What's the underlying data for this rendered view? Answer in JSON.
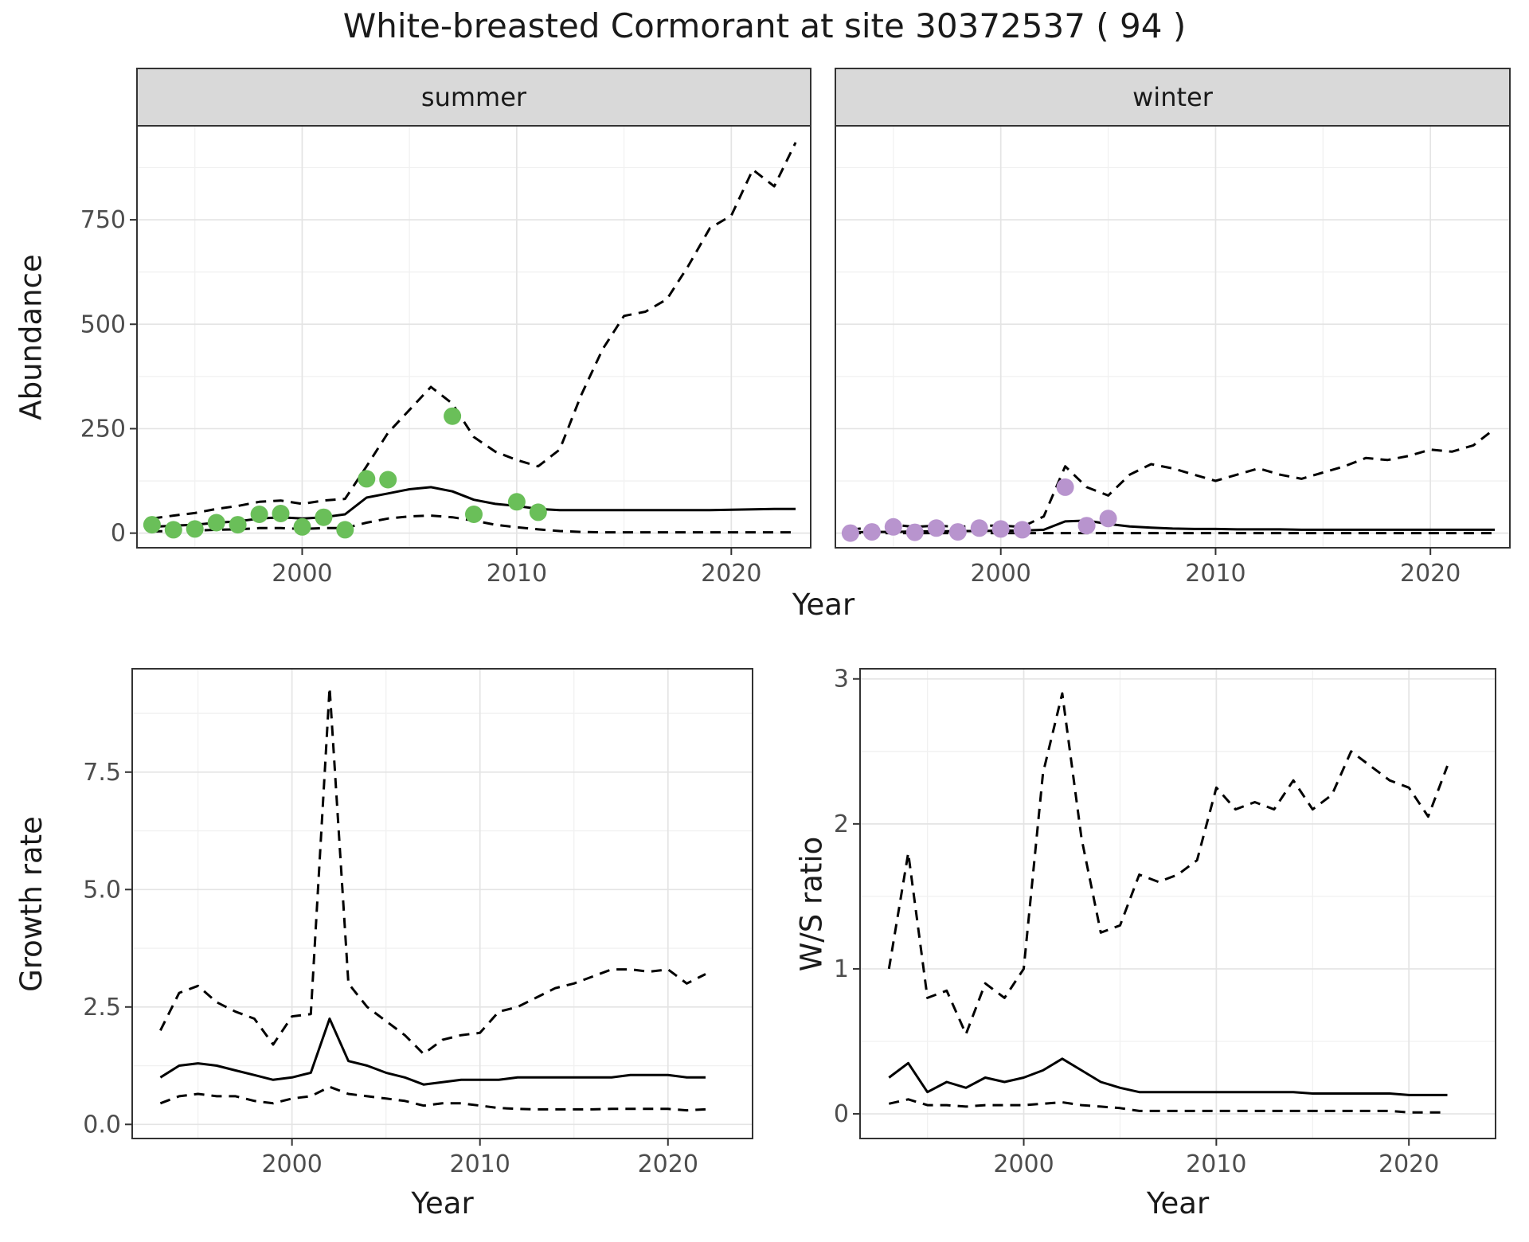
{
  "title": "White-breasted Cormorant at site 30372537 ( 94 )",
  "facets": {
    "summer_label": "summer",
    "winter_label": "winter"
  },
  "axis_titles": {
    "abundance": "Abundance",
    "year_top": "Year",
    "growth": "Growth rate",
    "year_growth": "Year",
    "ratio": "W/S ratio",
    "year_ratio": "Year"
  },
  "colors": {
    "summer_points": "#6abf59",
    "winter_points": "#b894ce",
    "line": "#000000",
    "strip_bg": "#d9d9d9",
    "panel_border": "#333333",
    "grid_major": "#e4e4e4",
    "grid_minor": "#f1f1f1",
    "axis_text": "#4d4d4d",
    "tick_mark": "#333333"
  },
  "chart_data": [
    {
      "id": "abundance_summer",
      "type": "line",
      "facet": "summer",
      "xlabel": "Year",
      "ylabel": "Abundance",
      "x_ticks": [
        "2000",
        "2010",
        "2020"
      ],
      "x_tick_values": [
        2000,
        2010,
        2020
      ],
      "y_ticks": [
        "0",
        "250",
        "500",
        "750"
      ],
      "y_tick_values": [
        0,
        250,
        500,
        750
      ],
      "xlim": [
        1992.3,
        2023.7
      ],
      "ylim": [
        -35,
        975
      ],
      "x": [
        1993,
        1994,
        1995,
        1996,
        1997,
        1998,
        1999,
        2000,
        2001,
        2002,
        2003,
        2004,
        2005,
        2006,
        2007,
        2008,
        2009,
        2010,
        2011,
        2012,
        2013,
        2014,
        2015,
        2016,
        2017,
        2018,
        2019,
        2020,
        2021,
        2022,
        2023
      ],
      "series": [
        {
          "name": "median",
          "style": "solid",
          "values": [
            15,
            18,
            20,
            25,
            28,
            35,
            38,
            35,
            38,
            45,
            85,
            95,
            105,
            110,
            100,
            80,
            70,
            65,
            58,
            55,
            55,
            55,
            55,
            55,
            55,
            55,
            55,
            56,
            57,
            58,
            58
          ]
        },
        {
          "name": "upper_ci",
          "style": "dashed",
          "values": [
            35,
            42,
            48,
            58,
            65,
            75,
            78,
            70,
            78,
            82,
            160,
            240,
            295,
            350,
            310,
            230,
            195,
            175,
            160,
            200,
            330,
            440,
            520,
            530,
            560,
            640,
            730,
            760,
            870,
            830,
            935
          ]
        },
        {
          "name": "lower_ci",
          "style": "dashed",
          "values": [
            4,
            5,
            6,
            8,
            9,
            12,
            12,
            10,
            12,
            12,
            25,
            35,
            40,
            42,
            38,
            30,
            20,
            14,
            9,
            5,
            3,
            2,
            2,
            2,
            2,
            2,
            2,
            2,
            2,
            2,
            2
          ]
        }
      ],
      "points": {
        "color_key": "summer_points",
        "x": [
          1993,
          1994,
          1995,
          1996,
          1997,
          1998,
          1999,
          2000,
          2001,
          2002,
          2003,
          2004,
          2007,
          2008,
          2010,
          2011
        ],
        "y": [
          20,
          8,
          10,
          25,
          20,
          45,
          47,
          15,
          38,
          8,
          130,
          128,
          280,
          45,
          75,
          50
        ]
      }
    },
    {
      "id": "abundance_winter",
      "type": "line",
      "facet": "winter",
      "xlabel": "Year",
      "ylabel": "Abundance",
      "x_ticks": [
        "2000",
        "2010",
        "2020"
      ],
      "x_tick_values": [
        2000,
        2010,
        2020
      ],
      "y_ticks": [
        "0",
        "250",
        "500",
        "750"
      ],
      "y_tick_values": [
        0,
        250,
        500,
        750
      ],
      "xlim": [
        1992.3,
        2023.7
      ],
      "ylim": [
        -35,
        975
      ],
      "x": [
        1993,
        1994,
        1995,
        1996,
        1997,
        1998,
        1999,
        2000,
        2001,
        2002,
        2003,
        2004,
        2005,
        2006,
        2007,
        2008,
        2009,
        2010,
        2011,
        2012,
        2013,
        2014,
        2015,
        2016,
        2017,
        2018,
        2019,
        2020,
        2021,
        2022,
        2023
      ],
      "series": [
        {
          "name": "median",
          "style": "solid",
          "values": [
            2,
            3,
            3,
            4,
            4,
            5,
            5,
            6,
            6,
            8,
            28,
            30,
            22,
            16,
            13,
            11,
            10,
            10,
            9,
            9,
            9,
            8,
            8,
            8,
            8,
            8,
            8,
            8,
            8,
            8,
            8
          ]
        },
        {
          "name": "upper_ci",
          "style": "dashed",
          "values": [
            8,
            14,
            20,
            15,
            18,
            15,
            18,
            18,
            15,
            40,
            160,
            110,
            90,
            140,
            165,
            155,
            140,
            125,
            140,
            155,
            140,
            130,
            145,
            160,
            180,
            175,
            185,
            200,
            195,
            210,
            250
          ]
        },
        {
          "name": "lower_ci",
          "style": "dashed",
          "values": [
            0,
            0,
            0,
            0,
            0,
            0,
            0,
            0,
            0,
            0,
            0,
            0,
            0,
            0,
            0,
            0,
            0,
            0,
            0,
            0,
            0,
            0,
            0,
            0,
            0,
            0,
            0,
            0,
            0,
            0,
            0
          ]
        }
      ],
      "points": {
        "color_key": "winter_points",
        "x": [
          1993,
          1994,
          1995,
          1996,
          1997,
          1998,
          1999,
          2000,
          2001,
          2003,
          2004,
          2005
        ],
        "y": [
          0,
          3,
          15,
          2,
          12,
          3,
          12,
          10,
          8,
          110,
          18,
          35
        ]
      }
    },
    {
      "id": "growth_rate",
      "type": "line",
      "xlabel": "Year",
      "ylabel": "Growth rate",
      "x_ticks": [
        "2000",
        "2010",
        "2020"
      ],
      "x_tick_values": [
        2000,
        2010,
        2020
      ],
      "y_ticks": [
        "0.0",
        "2.5",
        "5.0",
        "7.5"
      ],
      "y_tick_values": [
        0,
        2.5,
        5,
        7.5
      ],
      "xlim": [
        1991.5,
        2024.5
      ],
      "ylim": [
        -0.3,
        9.7
      ],
      "x": [
        1993,
        1994,
        1995,
        1996,
        1997,
        1998,
        1999,
        2000,
        2001,
        2002,
        2003,
        2004,
        2005,
        2006,
        2007,
        2008,
        2009,
        2010,
        2011,
        2012,
        2013,
        2014,
        2015,
        2016,
        2017,
        2018,
        2019,
        2020,
        2021,
        2022
      ],
      "series": [
        {
          "name": "median",
          "style": "solid",
          "values": [
            1.0,
            1.25,
            1.3,
            1.25,
            1.15,
            1.05,
            0.95,
            1.0,
            1.1,
            2.25,
            1.35,
            1.25,
            1.1,
            1.0,
            0.85,
            0.9,
            0.95,
            0.95,
            0.95,
            1.0,
            1.0,
            1.0,
            1.0,
            1.0,
            1.0,
            1.05,
            1.05,
            1.05,
            1.0,
            1.0
          ]
        },
        {
          "name": "upper_ci",
          "style": "dashed",
          "values": [
            2.0,
            2.8,
            2.95,
            2.6,
            2.4,
            2.25,
            1.7,
            2.3,
            2.35,
            9.3,
            3.0,
            2.5,
            2.2,
            1.9,
            1.5,
            1.8,
            1.9,
            1.95,
            2.4,
            2.5,
            2.7,
            2.9,
            3.0,
            3.15,
            3.3,
            3.3,
            3.25,
            3.3,
            3.0,
            3.2
          ]
        },
        {
          "name": "lower_ci",
          "style": "dashed",
          "values": [
            0.45,
            0.6,
            0.65,
            0.6,
            0.6,
            0.5,
            0.45,
            0.55,
            0.6,
            0.8,
            0.65,
            0.6,
            0.55,
            0.5,
            0.4,
            0.45,
            0.45,
            0.4,
            0.35,
            0.33,
            0.32,
            0.32,
            0.32,
            0.32,
            0.33,
            0.33,
            0.33,
            0.33,
            0.3,
            0.32
          ]
        }
      ]
    },
    {
      "id": "ws_ratio",
      "type": "line",
      "xlabel": "Year",
      "ylabel": "W/S ratio",
      "x_ticks": [
        "2000",
        "2010",
        "2020"
      ],
      "x_tick_values": [
        2000,
        2010,
        2020
      ],
      "y_ticks": [
        "0",
        "1",
        "2",
        "3"
      ],
      "y_tick_values": [
        0,
        1,
        2,
        3
      ],
      "xlim": [
        1991.5,
        2024.5
      ],
      "ylim": [
        -0.17,
        3.07
      ],
      "x": [
        1993,
        1994,
        1995,
        1996,
        1997,
        1998,
        1999,
        2000,
        2001,
        2002,
        2003,
        2004,
        2005,
        2006,
        2007,
        2008,
        2009,
        2010,
        2011,
        2012,
        2013,
        2014,
        2015,
        2016,
        2017,
        2018,
        2019,
        2020,
        2021,
        2022
      ],
      "series": [
        {
          "name": "median",
          "style": "solid",
          "values": [
            0.25,
            0.35,
            0.15,
            0.22,
            0.18,
            0.25,
            0.22,
            0.25,
            0.3,
            0.38,
            0.3,
            0.22,
            0.18,
            0.15,
            0.15,
            0.15,
            0.15,
            0.15,
            0.15,
            0.15,
            0.15,
            0.15,
            0.14,
            0.14,
            0.14,
            0.14,
            0.14,
            0.13,
            0.13,
            0.13
          ]
        },
        {
          "name": "upper_ci",
          "style": "dashed",
          "values": [
            1.0,
            1.8,
            0.8,
            0.85,
            0.55,
            0.9,
            0.8,
            1.0,
            2.35,
            2.9,
            1.9,
            1.25,
            1.3,
            1.65,
            1.6,
            1.65,
            1.75,
            2.25,
            2.1,
            2.15,
            2.1,
            2.3,
            2.1,
            2.2,
            2.5,
            2.4,
            2.3,
            2.25,
            2.05,
            2.4
          ]
        },
        {
          "name": "lower_ci",
          "style": "dashed",
          "values": [
            0.07,
            0.1,
            0.06,
            0.06,
            0.05,
            0.06,
            0.06,
            0.06,
            0.07,
            0.08,
            0.06,
            0.05,
            0.04,
            0.02,
            0.02,
            0.02,
            0.02,
            0.02,
            0.02,
            0.02,
            0.02,
            0.02,
            0.02,
            0.02,
            0.02,
            0.02,
            0.02,
            0.01,
            0.01,
            0.01
          ]
        }
      ]
    }
  ]
}
